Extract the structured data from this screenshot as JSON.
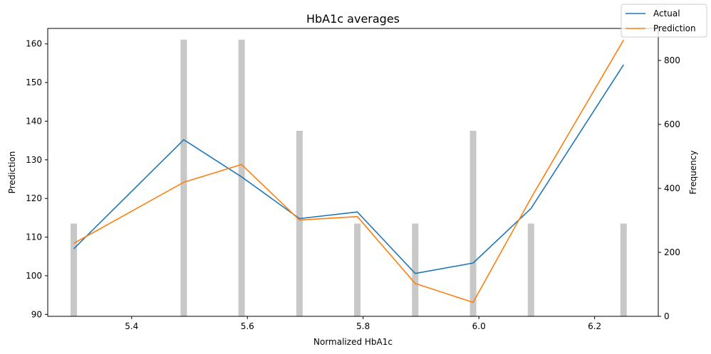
{
  "chart_data": {
    "type": "line",
    "title": "HbA1c averages",
    "xlabel": "Normalized HbA1c",
    "ylabel": "Prediction",
    "y2label": "Frequency",
    "xlim": [
      5.255,
      6.31
    ],
    "ylim": [
      89.5,
      164.0
    ],
    "y2lim": [
      0,
      900
    ],
    "xticks": [
      "5.4",
      "5.6",
      "5.8",
      "6.0",
      "6.2"
    ],
    "yticks": [
      "90",
      "100",
      "110",
      "120",
      "130",
      "140",
      "150",
      "160"
    ],
    "y2ticks": [
      "0",
      "200",
      "400",
      "600",
      "800"
    ],
    "x": [
      5.3,
      5.49,
      5.59,
      5.69,
      5.79,
      5.89,
      5.99,
      6.09,
      6.25
    ],
    "series": [
      {
        "name": "Actual",
        "color": "#1f77b4",
        "values": [
          107.0,
          135.2,
          125.6,
          114.8,
          116.5,
          100.6,
          103.3,
          117.4,
          154.6
        ]
      },
      {
        "name": "Prediction",
        "color": "#ff7f0e",
        "values": [
          108.4,
          124.2,
          128.8,
          114.4,
          115.3,
          98.0,
          93.1,
          120.1,
          161.0
        ]
      }
    ],
    "frequency": {
      "color": "#c8c8c8",
      "x": [
        5.3,
        5.49,
        5.59,
        5.69,
        5.79,
        5.89,
        5.99,
        6.09,
        6.25
      ],
      "values": [
        290,
        865,
        865,
        580,
        290,
        290,
        580,
        290,
        290
      ]
    },
    "legend_position": "top-right",
    "grid": false
  }
}
